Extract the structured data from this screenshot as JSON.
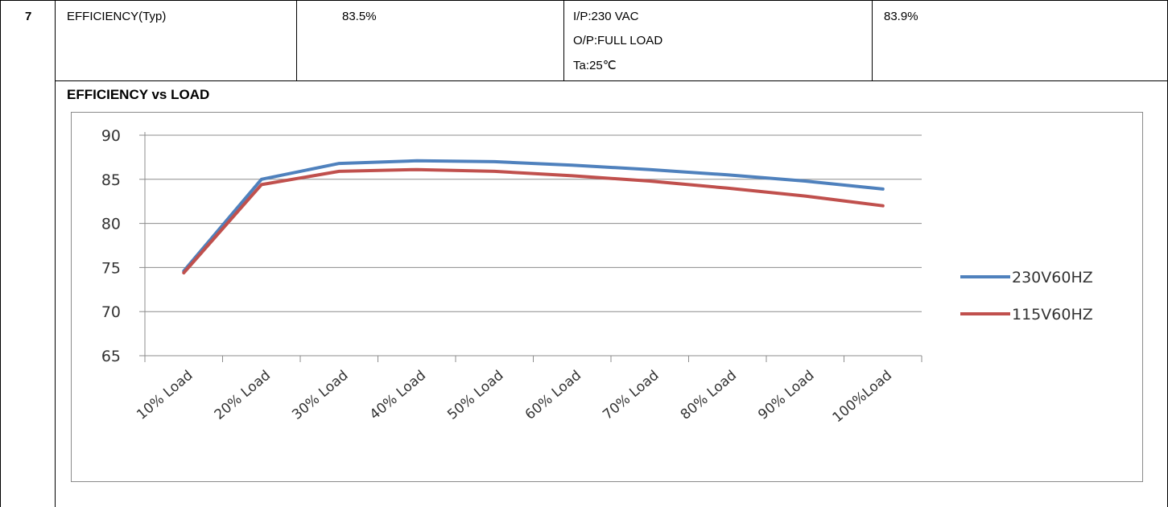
{
  "spec_row": {
    "item_no": "7",
    "parameter": "EFFICIENCY(Typ)",
    "spec_value": "83.5%",
    "condition_lines": [
      "I/P:230 VAC",
      "O/P:FULL LOAD",
      "Ta:25℃"
    ],
    "measured_value": "83.9%"
  },
  "chart_heading": "EFFICIENCY vs LOAD",
  "chart_data": {
    "type": "line",
    "categories": [
      "10% Load",
      "20% Load",
      "30% Load",
      "40% Load",
      "50% Load",
      "60% Load",
      "70% Load",
      "80% Load",
      "90% Load",
      "100%Load"
    ],
    "series": [
      {
        "name": "230V60HZ",
        "color": "#4f81bd",
        "values": [
          74.6,
          85.0,
          86.8,
          87.1,
          87.0,
          86.6,
          86.1,
          85.5,
          84.8,
          83.9
        ]
      },
      {
        "name": "115V60HZ",
        "color": "#c0504d",
        "values": [
          74.4,
          84.4,
          85.9,
          86.1,
          85.9,
          85.4,
          84.8,
          84.0,
          83.1,
          82.0
        ]
      }
    ],
    "yticks": [
      "90",
      "85",
      "80",
      "75",
      "70",
      "65"
    ],
    "ylim": [
      65,
      90
    ],
    "grid": true,
    "legend": "right"
  }
}
